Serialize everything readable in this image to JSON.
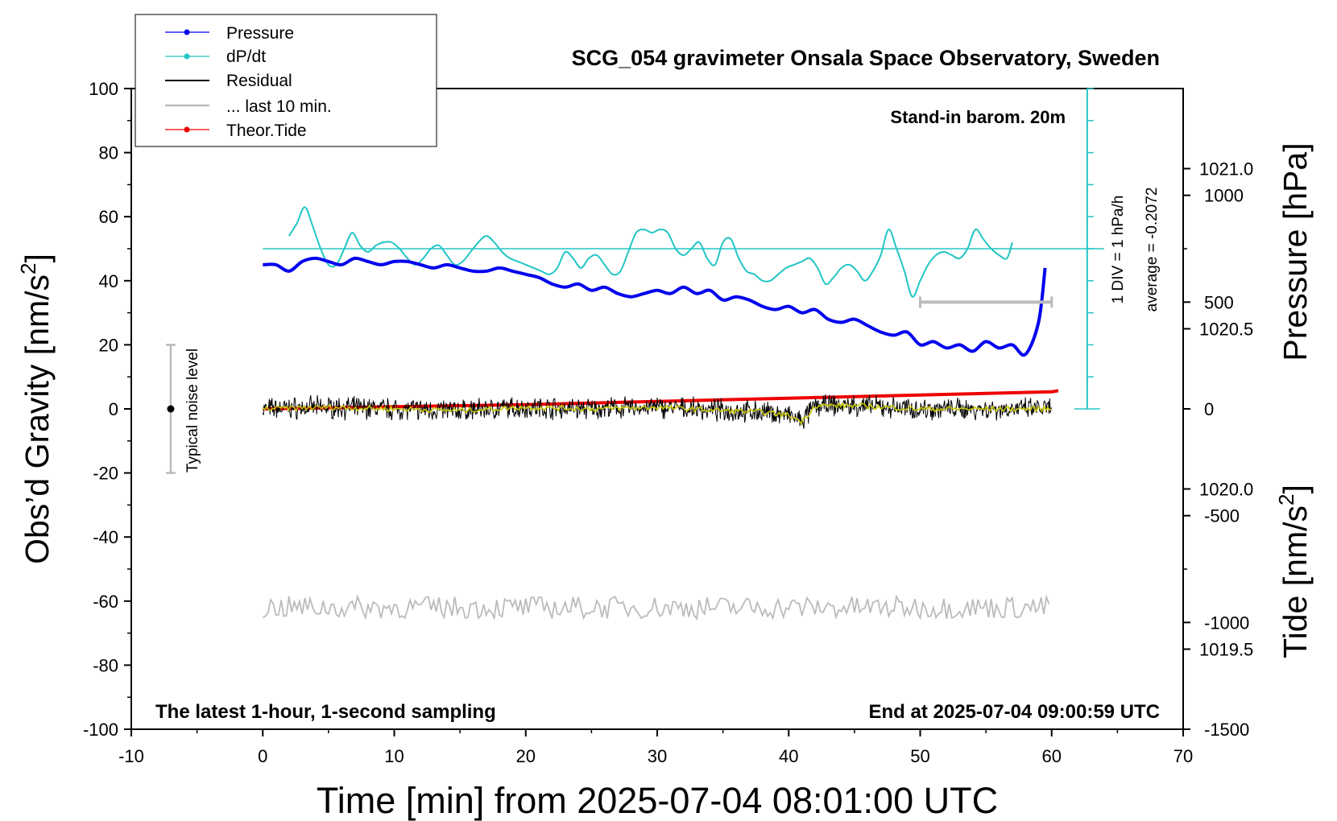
{
  "chart_data": {
    "type": "line",
    "title": "SCG_054 gravimeter Onsala Space Observatory, Sweden",
    "xlabel": "Time [min] from 2025-07-04 08:01:00 UTC",
    "ylabel_left": "Obs’d Gravity [nm/s",
    "ylabel_left_sup": "2",
    "ylabel_left_end": "]",
    "ylabel_right_pressure": "Pressure [hPa]",
    "ylabel_right_tide": "Tide [nm/s",
    "ylabel_right_tide_sup": "2",
    "ylabel_right_tide_end": "]",
    "xlim": [
      -10,
      70
    ],
    "ylim": [
      -100,
      100
    ],
    "pressure_ylim": [
      1019.25,
      1021.25
    ],
    "tide_ylim": [
      -1500,
      1500
    ],
    "x_ticks": [
      "-10",
      "0",
      "10",
      "20",
      "30",
      "40",
      "50",
      "60",
      "70"
    ],
    "y_ticks": [
      "100",
      "80",
      "60",
      "40",
      "20",
      "0",
      "-20",
      "-40",
      "-60",
      "-80",
      "-100"
    ],
    "pressure_ticks": [
      "1021.0",
      "1020.5",
      "1020.0",
      "1019.5"
    ],
    "tide_ticks": [
      "1000",
      "500",
      "0",
      "-500",
      "-1000",
      "-1500"
    ],
    "annotations": {
      "barometer": "Stand-in barom. 20m",
      "sampling": "The latest 1-hour, 1-second sampling",
      "end_time": "End at 2025-07-04 09:00:59 UTC",
      "noise": "Typical noise level",
      "div": "1 DIV = 1 hPa/h",
      "average": "average = -0.2072"
    },
    "legend": [
      {
        "label": "Pressure",
        "color": "#0000ee"
      },
      {
        "label": "dP/dt",
        "color": "#22c5c5"
      },
      {
        "label": "Residual",
        "color": "#000000"
      },
      {
        "label": "... last 10 min.",
        "color": "#bbbbbb"
      },
      {
        "label": "Theor.Tide",
        "color": "#ee0000"
      }
    ],
    "colors": {
      "pressure": "#0000ee",
      "dpdt": "#22c5c5",
      "residual": "#000000",
      "residual_smooth": "#c8c800",
      "last10": "#bbbbbb",
      "tide": "#ee0000"
    },
    "series": [
      {
        "name": "Pressure",
        "unit": "hPa",
        "x": [
          0,
          1,
          2,
          3,
          4,
          5,
          6,
          7,
          8,
          9,
          10,
          11,
          12,
          13,
          14,
          15,
          16,
          17,
          18,
          19,
          20,
          21,
          22,
          23,
          24,
          25,
          26,
          27,
          28,
          29,
          30,
          31,
          32,
          33,
          34,
          35,
          36,
          37,
          38,
          39,
          40,
          41,
          42,
          43,
          44,
          45,
          46,
          47,
          48,
          49,
          50,
          51,
          52,
          53,
          54,
          55,
          56,
          57,
          58,
          59,
          59.5
        ],
        "values": [
          1020.7,
          1020.7,
          1020.68,
          1020.71,
          1020.72,
          1020.71,
          1020.7,
          1020.72,
          1020.71,
          1020.7,
          1020.71,
          1020.71,
          1020.7,
          1020.69,
          1020.7,
          1020.69,
          1020.68,
          1020.68,
          1020.69,
          1020.68,
          1020.67,
          1020.66,
          1020.64,
          1020.63,
          1020.64,
          1020.62,
          1020.63,
          1020.61,
          1020.6,
          1020.61,
          1020.62,
          1020.61,
          1020.63,
          1020.61,
          1020.62,
          1020.59,
          1020.6,
          1020.59,
          1020.57,
          1020.56,
          1020.57,
          1020.55,
          1020.56,
          1020.53,
          1020.52,
          1020.53,
          1020.51,
          1020.49,
          1020.48,
          1020.49,
          1020.45,
          1020.46,
          1020.44,
          1020.45,
          1020.43,
          1020.46,
          1020.44,
          1020.45,
          1020.42,
          1020.52,
          1020.69
        ]
      },
      {
        "name": "dP/dt",
        "unit": "nm/s2 (plotted)",
        "x": [
          2,
          2.6,
          3.2,
          3.8,
          4.4,
          5,
          5.6,
          6.2,
          6.8,
          7.4,
          8,
          8.6,
          9.2,
          9.8,
          10.4,
          11,
          11.6,
          12.2,
          12.8,
          13.4,
          14,
          14.6,
          15.2,
          15.8,
          16.4,
          17,
          17.6,
          18.2,
          18.8,
          19.4,
          20,
          20.6,
          21.2,
          21.8,
          22.4,
          23,
          23.6,
          24.2,
          24.8,
          25.4,
          26,
          26.6,
          27.2,
          27.8,
          28.4,
          29,
          29.6,
          30.2,
          30.8,
          31.4,
          32,
          32.6,
          33.2,
          33.8,
          34.4,
          35,
          35.6,
          36.2,
          36.8,
          37.4,
          38,
          38.6,
          39.2,
          39.8,
          40.4,
          41,
          41.6,
          42.2,
          42.8,
          43.4,
          44,
          44.6,
          45.2,
          45.8,
          46.4,
          47,
          47.6,
          48.2,
          48.8,
          49.4,
          50,
          50.6,
          51.2,
          51.8,
          52.4,
          53,
          53.6,
          54.2,
          54.8,
          55.4,
          56,
          56.6,
          57
        ],
        "values": [
          54,
          58,
          63,
          57,
          50,
          45,
          45,
          50,
          55,
          51,
          49,
          51,
          52,
          52,
          50,
          47,
          45,
          47,
          50,
          51,
          48,
          45,
          46,
          49,
          52,
          54,
          52,
          49,
          47,
          46,
          45,
          44,
          43,
          42,
          44,
          49,
          47,
          44,
          47,
          48,
          45,
          42,
          43,
          49,
          55,
          56,
          55,
          56,
          55,
          50,
          48,
          50,
          52,
          47,
          45,
          52,
          53,
          47,
          43,
          42,
          40,
          40,
          42,
          44,
          45,
          46,
          47,
          44,
          39,
          41,
          44,
          45,
          43,
          40,
          43,
          48,
          56,
          50,
          43,
          35,
          40,
          45,
          48,
          49,
          48,
          47,
          50,
          56,
          53,
          50,
          48,
          47,
          52
        ]
      },
      {
        "name": "Residual",
        "unit": "nm/s2",
        "x": [
          0,
          5,
          10,
          15,
          20,
          25,
          30,
          35,
          38,
          40,
          41,
          42,
          45,
          50,
          55,
          60
        ],
        "values": [
          0,
          0.5,
          0,
          -0.5,
          0.5,
          0,
          0.5,
          -0.5,
          -1,
          -2,
          -4,
          1,
          1,
          0,
          0,
          0
        ]
      },
      {
        "name": "... last 10 min.",
        "unit": "nm/s2 (plotted)",
        "x": [
          0,
          5,
          10,
          15,
          20,
          25,
          30,
          35,
          40,
          45,
          50,
          55,
          60
        ],
        "values": [
          -62,
          -62,
          -62,
          -62,
          -62,
          -62,
          -62,
          -62,
          -62,
          -62,
          -62,
          -62,
          -62
        ]
      },
      {
        "name": "Theor.Tide",
        "unit": "nm/s2",
        "x": [
          0,
          10,
          20,
          30,
          40,
          50,
          60,
          60.5
        ],
        "values": [
          0,
          10,
          20,
          35,
          50,
          65,
          80,
          85
        ]
      }
    ],
    "dpdt_zero_level": 50,
    "noise_bar": {
      "x": -7,
      "center": 0,
      "half_range": 20
    },
    "gray_bar": {
      "x_start": 50,
      "x_end": 60,
      "tide_value": 500
    }
  }
}
